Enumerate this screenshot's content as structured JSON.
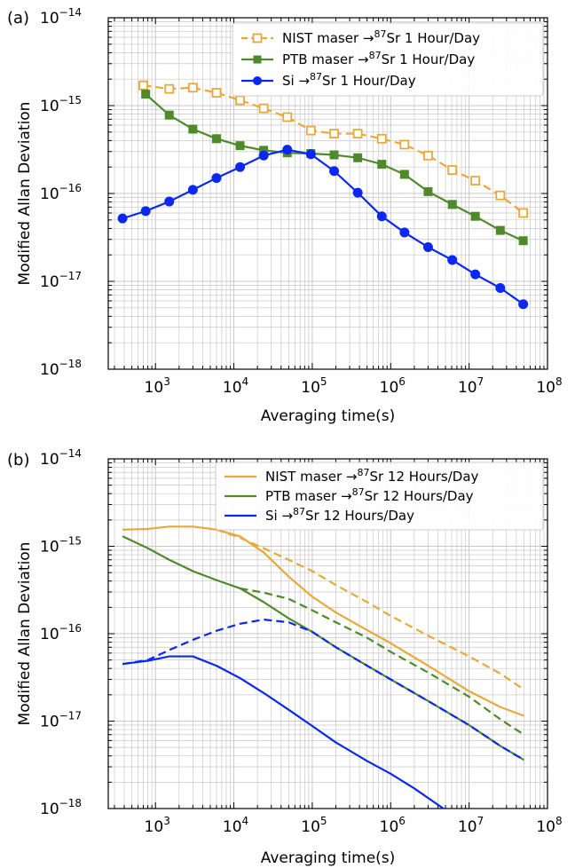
{
  "chart_data": [
    {
      "panel_label": "(a)",
      "type": "line",
      "scale": {
        "x": "log",
        "y": "log"
      },
      "xlim": [
        250,
        100000000
      ],
      "ylim": [
        1e-18,
        1e-14
      ],
      "xlabel": "Averaging time(s)",
      "ylabel": "Modified Allan Deviation",
      "x_ticks": [
        {
          "value": 1000,
          "base": "10",
          "exp": "3"
        },
        {
          "value": 10000,
          "base": "10",
          "exp": "4"
        },
        {
          "value": 100000,
          "base": "10",
          "exp": "5"
        },
        {
          "value": 1000000,
          "base": "10",
          "exp": "6"
        },
        {
          "value": 10000000,
          "base": "10",
          "exp": "7"
        },
        {
          "value": 100000000,
          "base": "10",
          "exp": "8"
        }
      ],
      "y_ticks": [
        {
          "value": 1e-18,
          "base": "10",
          "exp": "−18"
        },
        {
          "value": 1e-17,
          "base": "10",
          "exp": "−17"
        },
        {
          "value": 1e-16,
          "base": "10",
          "exp": "−16"
        },
        {
          "value": 1e-15,
          "base": "10",
          "exp": "−15"
        },
        {
          "value": 1e-14,
          "base": "10",
          "exp": "−14"
        }
      ],
      "grid": true,
      "legend_position": "top-right",
      "series": [
        {
          "name_pre": "NIST maser  →",
          "name_sup": "87",
          "name_post": "Sr 1 Hour/Day",
          "color": "#E8A93A",
          "dash": true,
          "marker": "square-open",
          "x": [
            700,
            1500,
            3000,
            6000,
            12000,
            24000,
            48000,
            96000,
            190000,
            380000,
            770000,
            1500000,
            3000000,
            6100000,
            12000000,
            25000000,
            49000000
          ],
          "y": [
            1.7e-15,
            1.55e-15,
            1.6e-15,
            1.4e-15,
            1.15e-15,
            9.3e-16,
            7.4e-16,
            5.2e-16,
            4.8e-16,
            4.8e-16,
            4.2e-16,
            3.6e-16,
            2.7e-16,
            1.85e-16,
            1.4e-16,
            9.5e-17,
            6e-17
          ]
        },
        {
          "name_pre": "PTB maser  →",
          "name_sup": "87",
          "name_post": "Sr 1 Hour/Day",
          "color": "#4E8A2A",
          "dash": false,
          "marker": "square-filled",
          "x": [
            750,
            1500,
            3000,
            6000,
            12000,
            24000,
            48000,
            96000,
            190000,
            380000,
            770000,
            1500000,
            3000000,
            6100000,
            12000000,
            25000000,
            49000000
          ],
          "y": [
            1.35e-15,
            7.8e-16,
            5.4e-16,
            4.2e-16,
            3.5e-16,
            3.1e-16,
            2.9e-16,
            2.85e-16,
            2.75e-16,
            2.55e-16,
            2.15e-16,
            1.65e-16,
            1.05e-16,
            7.5e-17,
            5.5e-17,
            3.8e-17,
            2.9e-17
          ]
        },
        {
          "name_pre": "Si  →",
          "name_sup": "87",
          "name_post": "Sr 1 Hour/Day",
          "color": "#0A28F0",
          "dash": false,
          "marker": "circle-filled",
          "x": [
            380,
            750,
            1500,
            3000,
            6000,
            12000,
            24000,
            48000,
            96000,
            190000,
            380000,
            770000,
            1500000,
            3000000,
            6100000,
            12000000,
            25000000,
            49000000
          ],
          "y": [
            5.2e-17,
            6.3e-17,
            8.1e-17,
            1.1e-16,
            1.5e-16,
            2e-16,
            2.7e-16,
            3.15e-16,
            2.8e-16,
            1.8e-16,
            1.02e-16,
            5.5e-17,
            3.6e-17,
            2.45e-17,
            1.75e-17,
            1.2e-17,
            8.4e-18,
            5.5e-18
          ]
        }
      ]
    },
    {
      "panel_label": "(b)",
      "type": "line",
      "scale": {
        "x": "log",
        "y": "log"
      },
      "xlim": [
        250,
        100000000
      ],
      "ylim": [
        1e-18,
        1e-14
      ],
      "xlabel": "Averaging time(s)",
      "ylabel": "Modified Allan Deviation",
      "x_ticks": [
        {
          "value": 1000,
          "base": "10",
          "exp": "3"
        },
        {
          "value": 10000,
          "base": "10",
          "exp": "4"
        },
        {
          "value": 100000,
          "base": "10",
          "exp": "5"
        },
        {
          "value": 1000000,
          "base": "10",
          "exp": "6"
        },
        {
          "value": 10000000,
          "base": "10",
          "exp": "7"
        },
        {
          "value": 100000000,
          "base": "10",
          "exp": "8"
        }
      ],
      "y_ticks": [
        {
          "value": 1e-18,
          "base": "10",
          "exp": "−18"
        },
        {
          "value": 1e-17,
          "base": "10",
          "exp": "−17"
        },
        {
          "value": 1e-16,
          "base": "10",
          "exp": "−16"
        },
        {
          "value": 1e-15,
          "base": "10",
          "exp": "−15"
        },
        {
          "value": 1e-14,
          "base": "10",
          "exp": "−14"
        }
      ],
      "grid": true,
      "legend_position": "top-right",
      "series": [
        {
          "name_pre": "NIST maser  →",
          "name_sup": "87",
          "name_post": "Sr 12 Hours/Day",
          "color": "#E8A93A",
          "dash": false,
          "legend": true,
          "x": [
            380,
            800,
            1500,
            3000,
            6000,
            12000,
            24000,
            50000,
            100000,
            200000,
            500000,
            1000000,
            3000000,
            10000000,
            25000000,
            50000000
          ],
          "y": [
            1.55e-15,
            1.58e-15,
            1.68e-15,
            1.68e-15,
            1.55e-15,
            1.3e-15,
            8.5e-16,
            4.5e-16,
            2.65e-16,
            1.75e-16,
            1.1e-16,
            7.8e-17,
            4.3e-17,
            2.2e-17,
            1.45e-17,
            1.15e-17
          ]
        },
        {
          "name_pre": "",
          "name_sup": "",
          "name_post": "",
          "color": "#E8A93A",
          "dash": true,
          "legend": false,
          "x": [
            6000,
            12000,
            24000,
            50000,
            100000,
            200000,
            500000,
            1000000,
            3000000,
            10000000,
            25000000,
            50000000
          ],
          "y": [
            1.55e-15,
            1.25e-15,
            9.5e-16,
            7e-16,
            5.2e-16,
            3.6e-16,
            2.3e-16,
            1.6e-16,
            9.5e-17,
            5.5e-17,
            3.5e-17,
            2.3e-17
          ]
        },
        {
          "name_pre": "PTB maser  →",
          "name_sup": "87",
          "name_post": "Sr 12 Hours/Day",
          "color": "#4E8A2A",
          "dash": false,
          "legend": true,
          "x": [
            380,
            800,
            1500,
            3000,
            6000,
            12000,
            24000,
            50000,
            100000,
            200000,
            500000,
            1000000,
            3000000,
            10000000,
            25000000,
            50000000
          ],
          "y": [
            1.3e-15,
            9.5e-16,
            7e-16,
            5.2e-16,
            4.1e-16,
            3.3e-16,
            2.3e-16,
            1.5e-16,
            1.05e-16,
            7e-17,
            4.3e-17,
            3e-17,
            1.7e-17,
            9e-18,
            5.2e-18,
            3.6e-18
          ]
        },
        {
          "name_pre": "",
          "name_sup": "",
          "name_post": "",
          "color": "#4E8A2A",
          "dash": true,
          "legend": false,
          "x": [
            12000,
            24000,
            50000,
            100000,
            200000,
            500000,
            1000000,
            3000000,
            10000000,
            25000000,
            50000000
          ],
          "y": [
            3.3e-16,
            2.95e-16,
            2.5e-16,
            1.85e-16,
            1.35e-16,
            9e-17,
            6.2e-17,
            3.6e-17,
            1.9e-17,
            1.05e-17,
            7e-18
          ]
        },
        {
          "name_pre": "Si  →",
          "name_sup": "87",
          "name_post": "Sr 12 Hours/Day",
          "color": "#0A28F0",
          "dash": false,
          "legend": true,
          "x": [
            380,
            800,
            1500,
            3000,
            6000,
            12000,
            24000,
            50000,
            100000,
            200000,
            500000,
            1000000,
            2000000,
            4700000
          ],
          "y": [
            4.5e-17,
            4.9e-17,
            5.5e-17,
            5.5e-17,
            4.3e-17,
            3.1e-17,
            2.1e-17,
            1.35e-17,
            8.8e-18,
            5.7e-18,
            3.5e-18,
            2.5e-18,
            1.7e-18,
            1e-18
          ]
        },
        {
          "name_pre": "",
          "name_sup": "",
          "name_post": "",
          "color": "#0A28F0",
          "dash": true,
          "legend": false,
          "x": [
            380,
            800,
            1500,
            3000,
            6000,
            12000,
            24000,
            50000,
            100000,
            200000,
            500000,
            1000000,
            3000000,
            10000000,
            25000000,
            50000000
          ],
          "y": [
            4.5e-17,
            5e-17,
            6.5e-17,
            8.5e-17,
            1.08e-16,
            1.3e-16,
            1.45e-16,
            1.35e-16,
            1.05e-16,
            7e-17,
            4.3e-17,
            3e-17,
            1.7e-17,
            9e-18,
            5.2e-18,
            3.6e-18
          ]
        }
      ]
    }
  ]
}
